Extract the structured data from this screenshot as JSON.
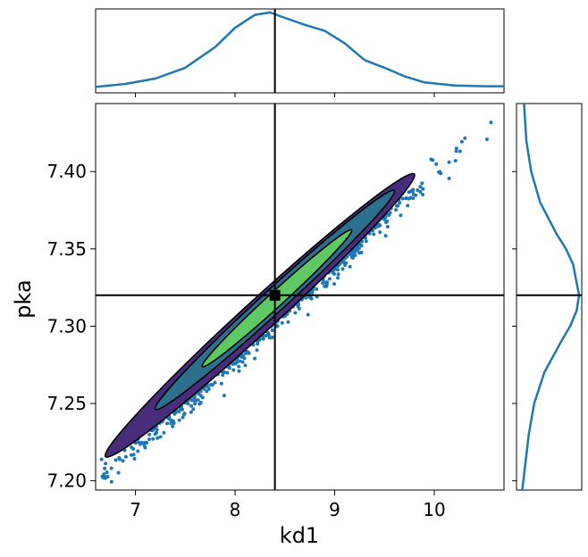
{
  "chart_data": {
    "type": "scatter",
    "subtype": "joint-plot with 2D density contours and marginal KDEs",
    "xlabel": "kd1",
    "ylabel": "pka",
    "xlim": [
      6.6,
      10.7
    ],
    "ylim": [
      7.194,
      7.444
    ],
    "x_ticks": [
      7,
      8,
      9,
      10
    ],
    "x_tick_labels": [
      "7",
      "8",
      "9",
      "10"
    ],
    "y_ticks": [
      7.2,
      7.25,
      7.3,
      7.35,
      7.4
    ],
    "y_tick_labels": [
      "7.20",
      "7.25",
      "7.30",
      "7.35",
      "7.40"
    ],
    "grid": false,
    "reference_point": {
      "x": 8.4,
      "y": 7.32,
      "marker": "square",
      "color": "#000000"
    },
    "scatter_color": "#1f77b4",
    "kde_color": "#1f77b4",
    "scatter_trend": {
      "x": [
        6.7,
        10.6
      ],
      "y": [
        7.205,
        7.435
      ],
      "noise_sd": 0.005
    },
    "contours": [
      {
        "level": "outer",
        "fill": "#472d7b",
        "center": [
          8.25,
          7.307
        ],
        "half_length": 1.55,
        "half_width": 0.085
      },
      {
        "level": "middle",
        "fill": "#2d708e",
        "center": [
          8.4,
          7.317
        ],
        "half_length": 1.2,
        "half_width": 0.062
      },
      {
        "level": "inner",
        "fill": "#5ec962",
        "center": [
          8.42,
          7.318
        ],
        "half_length": 0.75,
        "half_width": 0.04
      }
    ],
    "marginal_x_kde": {
      "x": [
        6.6,
        6.9,
        7.2,
        7.5,
        7.8,
        8.0,
        8.2,
        8.35,
        8.5,
        8.7,
        8.9,
        9.1,
        9.3,
        9.5,
        9.7,
        9.9,
        10.2,
        10.5,
        10.7
      ],
      "density": [
        0.03,
        0.07,
        0.14,
        0.28,
        0.55,
        0.8,
        0.97,
        1.0,
        0.93,
        0.84,
        0.76,
        0.6,
        0.38,
        0.28,
        0.17,
        0.09,
        0.05,
        0.04,
        0.04
      ]
    },
    "marginal_y_kde": {
      "y": [
        7.194,
        7.21,
        7.23,
        7.25,
        7.27,
        7.29,
        7.3,
        7.31,
        7.32,
        7.33,
        7.34,
        7.35,
        7.36,
        7.38,
        7.4,
        7.42,
        7.444
      ],
      "density": [
        0.05,
        0.1,
        0.16,
        0.25,
        0.42,
        0.7,
        0.85,
        0.96,
        1.0,
        0.95,
        0.9,
        0.78,
        0.62,
        0.35,
        0.2,
        0.12,
        0.08
      ]
    }
  }
}
